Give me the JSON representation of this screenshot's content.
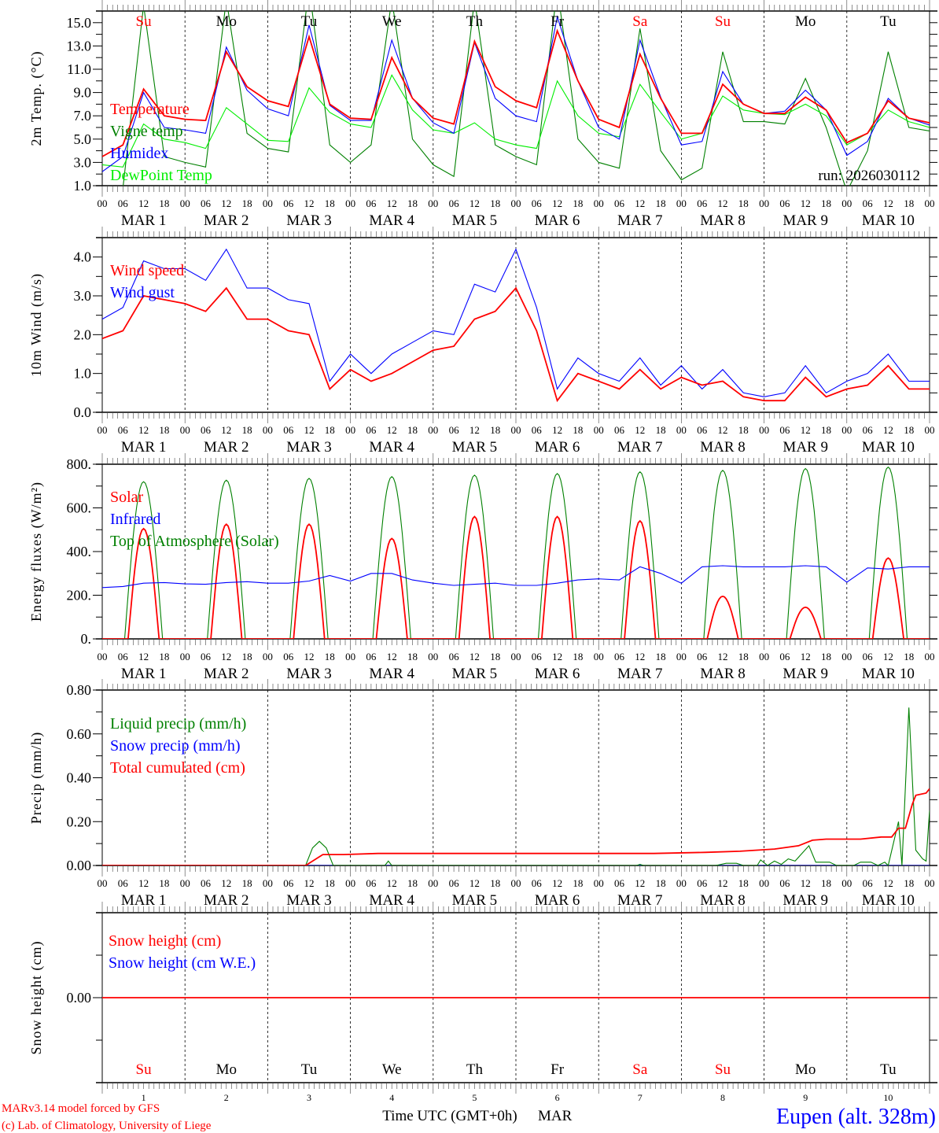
{
  "chart_data": [
    {
      "type": "line",
      "ylabel": "2m Temp. (°C)",
      "ylim": [
        1,
        16
      ],
      "yticks": [
        1,
        3,
        5,
        7,
        9,
        11,
        13,
        15
      ],
      "ytick_labels": [
        "1.0",
        "3.0",
        "5.0",
        "7.0",
        "9.0",
        "11.0",
        "13.0",
        "15.0"
      ],
      "annotation": "run: 2026030112",
      "x_hours": [
        0,
        6,
        12,
        18,
        24,
        30,
        36,
        42,
        48,
        54,
        60,
        66,
        72,
        78,
        84,
        90,
        96,
        102,
        108,
        114,
        120,
        126,
        132,
        138,
        144,
        150,
        156,
        162,
        168,
        174,
        180,
        186,
        192,
        198,
        204,
        210,
        216,
        222,
        228,
        234,
        240
      ],
      "series": [
        {
          "name": "Vigne temp",
          "color": "#008000",
          "values": [
            0.5,
            0.8,
            16.5,
            3.5,
            3.0,
            2.6,
            17,
            5.5,
            4.2,
            3.9,
            18,
            4.5,
            3.0,
            4.5,
            17,
            5.0,
            2.8,
            1.8,
            17,
            4.5,
            3.5,
            2.8,
            18,
            5.0,
            3.0,
            2.5,
            14.5,
            4.0,
            1.5,
            2.5,
            12.5,
            6.5,
            6.5,
            6.3,
            10.2,
            6.0,
            0.5,
            4.0,
            12.5,
            6.0,
            5.7
          ]
        },
        {
          "name": "DewPoint Temp",
          "color": "#00ee00",
          "values": [
            2.8,
            2.6,
            6.3,
            5.0,
            4.7,
            4.2,
            7.7,
            6.3,
            4.9,
            4.8,
            9.4,
            7.3,
            6.3,
            6.0,
            10.5,
            7.5,
            5.8,
            5.5,
            6.4,
            5.0,
            4.5,
            4.2,
            10.0,
            7.0,
            5.5,
            5.2,
            9.7,
            7.3,
            5.0,
            5.5,
            8.7,
            7.5,
            7.2,
            7.1,
            8.0,
            7.0,
            4.5,
            5.5,
            7.5,
            6.5,
            6.0
          ]
        },
        {
          "name": "Humidex",
          "color": "#0000ff",
          "values": [
            2.2,
            3.5,
            9.0,
            6.0,
            5.8,
            5.5,
            12.9,
            9.2,
            7.6,
            7.0,
            14.8,
            7.9,
            6.6,
            6.6,
            13.5,
            8.5,
            6.4,
            5.5,
            13.3,
            8.5,
            7.0,
            6.5,
            15.5,
            10.0,
            6.0,
            5.0,
            13.5,
            8.6,
            4.5,
            4.8,
            10.8,
            8.0,
            7.2,
            7.4,
            9.2,
            7.5,
            3.6,
            4.8,
            8.5,
            6.8,
            6.2
          ]
        },
        {
          "name": "Temperature",
          "color": "#ff0000",
          "values": [
            3.5,
            4.5,
            9.3,
            7.0,
            6.7,
            6.6,
            12.5,
            9.5,
            8.3,
            7.8,
            13.8,
            8.0,
            6.8,
            6.7,
            12.0,
            8.5,
            6.8,
            6.3,
            13.4,
            9.5,
            8.3,
            7.7,
            14.3,
            10.0,
            6.7,
            6.0,
            12.3,
            8.5,
            5.5,
            5.5,
            9.7,
            8.0,
            7.2,
            7.2,
            8.6,
            7.5,
            4.7,
            5.5,
            8.3,
            6.8,
            6.4
          ]
        }
      ],
      "legend": [
        {
          "label": "Temperature",
          "color": "#ff0000"
        },
        {
          "label": "Vigne temp",
          "color": "#008000"
        },
        {
          "label": "Humidex",
          "color": "#0000ff"
        },
        {
          "label": "DewPoint Temp",
          "color": "#00ee00"
        }
      ]
    },
    {
      "type": "line",
      "ylabel": "10m Wind (m/s)",
      "ylim": [
        0,
        4.5
      ],
      "yticks": [
        0,
        1,
        2,
        3,
        4
      ],
      "ytick_labels": [
        "0.0",
        "1.0",
        "2.0",
        "3.0",
        "4.0"
      ],
      "x_hours": [
        0,
        6,
        12,
        18,
        24,
        30,
        36,
        42,
        48,
        54,
        60,
        66,
        72,
        78,
        84,
        90,
        96,
        102,
        108,
        114,
        120,
        126,
        132,
        138,
        144,
        150,
        156,
        162,
        168,
        174,
        180,
        186,
        192,
        198,
        204,
        210,
        216,
        222,
        228,
        234,
        240
      ],
      "series": [
        {
          "name": "Wind gust",
          "color": "#0000ff",
          "values": [
            2.4,
            2.7,
            3.9,
            3.7,
            3.7,
            3.4,
            4.2,
            3.2,
            3.2,
            2.9,
            2.8,
            0.8,
            1.5,
            1.0,
            1.5,
            1.8,
            2.1,
            2.0,
            3.3,
            3.1,
            4.2,
            2.7,
            0.6,
            1.4,
            1.0,
            0.8,
            1.4,
            0.7,
            1.2,
            0.6,
            1.1,
            0.5,
            0.4,
            0.5,
            1.2,
            0.5,
            0.8,
            1.0,
            1.5,
            0.8,
            0.8
          ]
        },
        {
          "name": "Wind speed",
          "color": "#ff0000",
          "values": [
            1.9,
            2.1,
            3.0,
            2.9,
            2.8,
            2.6,
            3.2,
            2.4,
            2.4,
            2.1,
            2.0,
            0.6,
            1.1,
            0.8,
            1.0,
            1.3,
            1.6,
            1.7,
            2.4,
            2.6,
            3.2,
            2.1,
            0.3,
            1.0,
            0.8,
            0.6,
            1.1,
            0.6,
            0.9,
            0.7,
            0.8,
            0.4,
            0.3,
            0.3,
            0.9,
            0.4,
            0.6,
            0.7,
            1.2,
            0.6,
            0.6
          ]
        }
      ],
      "legend": [
        {
          "label": "Wind speed",
          "color": "#ff0000"
        },
        {
          "label": "Wind gust",
          "color": "#0000ff"
        }
      ]
    },
    {
      "type": "line",
      "ylabel": "Energy fluxes (W/m²)",
      "ylim": [
        0,
        800
      ],
      "yticks": [
        0,
        200,
        400,
        600,
        800
      ],
      "ytick_labels": [
        "0.",
        "200.",
        "400.",
        "600.",
        "800."
      ],
      "x_hours": [
        0,
        6,
        12,
        18,
        24,
        30,
        36,
        42,
        48,
        54,
        60,
        66,
        72,
        78,
        84,
        90,
        96,
        102,
        108,
        114,
        120,
        126,
        132,
        138,
        144,
        150,
        156,
        162,
        168,
        174,
        180,
        186,
        192,
        198,
        204,
        210,
        216,
        222,
        228,
        234,
        240
      ],
      "series": [
        {
          "name": "Top of Atmosphere (Solar)",
          "color": "#008000",
          "daily_peak": [
            720,
            727,
            735,
            743,
            750,
            757,
            765,
            772,
            780,
            787
          ]
        },
        {
          "name": "Solar",
          "color": "#ff0000",
          "daily_peak": [
            505,
            525,
            525,
            460,
            560,
            560,
            540,
            195,
            145,
            370
          ]
        },
        {
          "name": "Infrared",
          "color": "#0000ff",
          "values": [
            235,
            240,
            255,
            258,
            252,
            250,
            258,
            262,
            255,
            255,
            265,
            290,
            265,
            300,
            300,
            270,
            255,
            245,
            250,
            255,
            245,
            245,
            255,
            270,
            275,
            270,
            330,
            300,
            255,
            330,
            335,
            330,
            330,
            330,
            335,
            330,
            260,
            325,
            320,
            330,
            330
          ]
        }
      ],
      "legend": [
        {
          "label": "Solar",
          "color": "#ff0000"
        },
        {
          "label": "Infrared",
          "color": "#0000ff"
        },
        {
          "label": "Top of Atmosphere (Solar)",
          "color": "#008000"
        }
      ]
    },
    {
      "type": "line",
      "ylabel": "Precip (mm/h)",
      "ylim": [
        0,
        0.8
      ],
      "yticks": [
        0,
        0.2,
        0.4,
        0.6,
        0.8
      ],
      "ytick_labels": [
        "0.00",
        "0.20",
        "0.40",
        "0.60",
        "0.80"
      ],
      "series": [
        {
          "name": "Snow precip (mm/h)",
          "color": "#0000ff",
          "points": [
            [
              0,
              0
            ],
            [
              240,
              0
            ]
          ]
        },
        {
          "name": "Liquid precip (mm/h)",
          "color": "#008000",
          "points": [
            [
              0,
              0
            ],
            [
              59,
              0
            ],
            [
              61,
              0.08
            ],
            [
              63,
              0.11
            ],
            [
              65,
              0.08
            ],
            [
              67,
              0
            ],
            [
              82,
              0
            ],
            [
              83,
              0.02
            ],
            [
              84,
              0
            ],
            [
              155,
              0
            ],
            [
              156,
              0.005
            ],
            [
              157,
              0
            ],
            [
              178,
              0
            ],
            [
              181,
              0.01
            ],
            [
              184,
              0.01
            ],
            [
              186,
              0
            ],
            [
              190,
              0
            ],
            [
              191,
              0.025
            ],
            [
              193,
              0
            ],
            [
              195,
              0.02
            ],
            [
              197,
              0.005
            ],
            [
              199,
              0.03
            ],
            [
              201,
              0.02
            ],
            [
              205,
              0.09
            ],
            [
              207,
              0.015
            ],
            [
              211,
              0.015
            ],
            [
              213,
              0
            ],
            [
              218,
              0
            ],
            [
              220,
              0.015
            ],
            [
              223,
              0.015
            ],
            [
              225,
              0
            ],
            [
              227,
              0.015
            ],
            [
              228,
              0
            ],
            [
              231,
              0.2
            ],
            [
              232,
              0
            ],
            [
              234,
              0.72
            ],
            [
              236,
              0.07
            ],
            [
              238,
              0.03
            ],
            [
              239,
              0.02
            ],
            [
              240,
              0.25
            ]
          ]
        },
        {
          "name": "Total cumulated (cm)",
          "color": "#ff0000",
          "points": [
            [
              0,
              0
            ],
            [
              59,
              0
            ],
            [
              64,
              0.05
            ],
            [
              70,
              0.05
            ],
            [
              80,
              0.055
            ],
            [
              160,
              0.055
            ],
            [
              175,
              0.06
            ],
            [
              185,
              0.065
            ],
            [
              195,
              0.075
            ],
            [
              202,
              0.09
            ],
            [
              206,
              0.115
            ],
            [
              210,
              0.12
            ],
            [
              220,
              0.12
            ],
            [
              226,
              0.13
            ],
            [
              229,
              0.13
            ],
            [
              231,
              0.17
            ],
            [
              233,
              0.17
            ],
            [
              235,
              0.28
            ],
            [
              236,
              0.32
            ],
            [
              239,
              0.33
            ],
            [
              240,
              0.35
            ]
          ]
        }
      ],
      "legend": [
        {
          "label": "Liquid precip (mm/h)",
          "color": "#008000"
        },
        {
          "label": "Snow precip (mm/h)",
          "color": "#0000ff"
        },
        {
          "label": "Total cumulated (cm)",
          "color": "#ff0000"
        }
      ]
    },
    {
      "type": "line",
      "ylabel": "Snow height (cm)",
      "ylim": [
        -1,
        1
      ],
      "yticks": [
        0
      ],
      "ytick_labels": [
        "0.00"
      ],
      "series": [
        {
          "name": "Snow height (cm W.E.)",
          "color": "#0000ff",
          "points": [
            [
              0,
              0
            ],
            [
              240,
              0
            ]
          ]
        },
        {
          "name": "Snow height (cm)",
          "color": "#ff0000",
          "points": [
            [
              0,
              0
            ],
            [
              240,
              0
            ]
          ]
        }
      ],
      "legend": [
        {
          "label": "Snow height (cm)",
          "color": "#ff0000"
        },
        {
          "label": "Snow height (cm W.E.)",
          "color": "#0000ff"
        }
      ]
    }
  ],
  "time_axis": {
    "hour_labels": [
      "00",
      "06",
      "12",
      "18"
    ],
    "date_labels": [
      "MAR  1",
      "MAR  2",
      "MAR  3",
      "MAR  4",
      "MAR  5",
      "MAR  6",
      "MAR  7",
      "MAR  8",
      "MAR  9",
      "MAR 10"
    ],
    "weekdays": [
      {
        "label": "Su",
        "color": "#ff0000"
      },
      {
        "label": "Mo",
        "color": "#000000"
      },
      {
        "label": "Tu",
        "color": "#000000"
      },
      {
        "label": "We",
        "color": "#000000"
      },
      {
        "label": "Th",
        "color": "#000000"
      },
      {
        "label": "Fr",
        "color": "#000000"
      },
      {
        "label": "Sa",
        "color": "#ff0000"
      },
      {
        "label": "Su",
        "color": "#ff0000"
      },
      {
        "label": "Mo",
        "color": "#000000"
      },
      {
        "label": "Tu",
        "color": "#000000"
      }
    ],
    "day_numbers": [
      "1",
      "2",
      "3",
      "4",
      "5",
      "6",
      "7",
      "8",
      "9",
      "10"
    ],
    "xlabel": "Time UTC (GMT+0h)",
    "month": "MAR"
  },
  "footer": {
    "credit_line1": "MARv3.14 model forced by GFS",
    "credit_line2": "(c) Lab. of Climatology, University of Liege",
    "location": "Eupen (alt. 328m)"
  }
}
